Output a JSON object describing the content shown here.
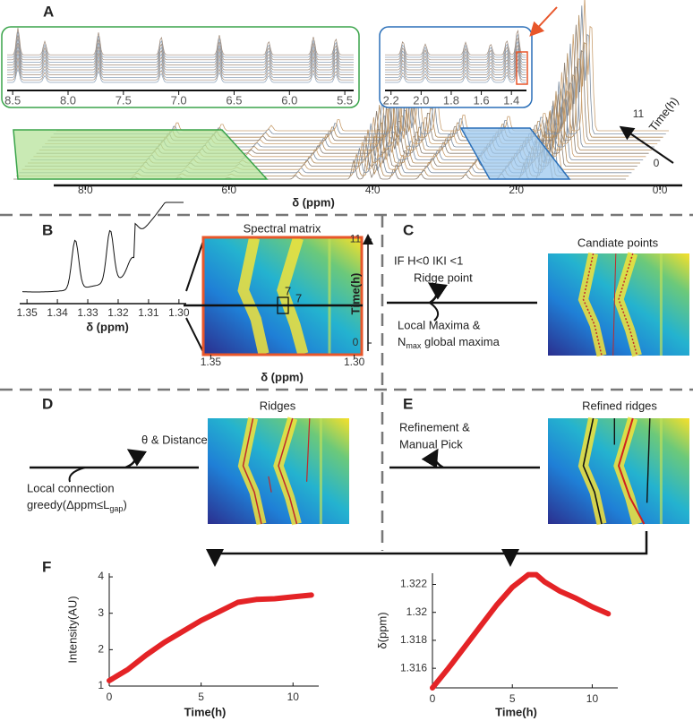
{
  "figure": {
    "A": {
      "label": "A",
      "main_axis": {
        "xlabel": "δ (ppm)",
        "xlim": [
          8.44,
          -0.31
        ],
        "xticks": [
          {
            "value": 8,
            "label": "8.0"
          },
          {
            "value": 6,
            "label": "6.0"
          },
          {
            "value": 4,
            "label": "4.0"
          },
          {
            "value": 2,
            "label": "2.0"
          },
          {
            "value": 0,
            "label": "0.0"
          }
        ]
      },
      "inset_green": {
        "xlim": [
          8.55,
          5.42
        ],
        "xticks": [
          8.5,
          {
            "value": 8,
            "label": "8.0"
          },
          7.5,
          {
            "value": 7,
            "label": "7.0"
          },
          6.5,
          {
            "value": 6,
            "label": "6.0"
          },
          5.5
        ]
      },
      "inset_blue": {
        "xlim": [
          2.24,
          1.3
        ],
        "xticks": [
          2.2,
          {
            "value": 2,
            "label": "2.0"
          },
          1.8,
          1.6,
          1.4
        ]
      },
      "time_axis": {
        "label": "Time(h)",
        "ticks": [
          11,
          0
        ]
      }
    },
    "B": {
      "label": "B",
      "spectrum": {
        "xlabel": "δ (ppm)",
        "xlim": [
          1.3524,
          1.2976
        ],
        "xticks": [
          1.35,
          1.34,
          1.33,
          1.32,
          1.31,
          {
            "value": 1.3,
            "label": "1.30"
          }
        ]
      },
      "matrix": {
        "title": "Spectral matrix",
        "xlabel": "δ (ppm)",
        "ylabel": "Time(h)",
        "xlim": [
          1.3523,
          1.2977
        ],
        "ylim": [
          0,
          11.2
        ],
        "xticks": [
          1.35,
          {
            "value": 1.3,
            "label": "1.30"
          }
        ],
        "yticks": [
          11,
          0
        ],
        "marker_labels": [
          7,
          7
        ]
      }
    },
    "C": {
      "label": "C",
      "title": "Candiate points",
      "condition": "IF H<0 IKI <1",
      "step": "Ridge point",
      "method_line1": "Local Maxima &",
      "method_line2": {
        "base": "N",
        "sub": "max",
        "rest": " global maxima"
      }
    },
    "D": {
      "label": "D",
      "title": "Ridges",
      "step": "θ & Distance",
      "method_line1": "Local connection",
      "method_line2": {
        "base": "greedy(Δppm≤L",
        "sub": "gap",
        "rest": ")"
      }
    },
    "E": {
      "label": "E",
      "title": "Refined ridges",
      "step_line1": "Refinement &",
      "step_line2": "Manual Pick"
    },
    "F": {
      "label": "F",
      "charts": [
        {
          "type": "line",
          "xlabel": "Time(h)",
          "ylabel": "Intensity(AU)",
          "color": "#e42326",
          "xlim": [
            0,
            11.4
          ],
          "ylim": [
            1,
            4.1
          ],
          "xticks": [
            0,
            5,
            10
          ],
          "yticks": [
            1,
            2,
            3,
            4
          ],
          "x": [
            0,
            1,
            2,
            3,
            4,
            5,
            6,
            7,
            8,
            9,
            10,
            11
          ],
          "values": [
            1.15,
            1.45,
            1.85,
            2.2,
            2.5,
            2.8,
            3.05,
            3.3,
            3.38,
            3.4,
            3.45,
            3.5
          ]
        },
        {
          "type": "line",
          "xlabel": "Time(h)",
          "ylabel": "δ(ppm)",
          "color": "#e42326",
          "xlim": [
            0,
            11.6
          ],
          "ylim": [
            1.3146,
            1.3228
          ],
          "xticks": [
            0,
            5,
            10
          ],
          "yticks": [
            1.316,
            1.318,
            1.32,
            1.322
          ],
          "x": [
            0,
            1,
            2,
            3,
            4,
            5,
            6,
            6.5,
            7,
            8,
            9,
            10,
            11
          ],
          "values": [
            1.3146,
            1.316,
            1.3175,
            1.319,
            1.3205,
            1.3218,
            1.3227,
            1.3227,
            1.3222,
            1.3215,
            1.321,
            1.3204,
            1.3199
          ]
        }
      ]
    }
  }
}
